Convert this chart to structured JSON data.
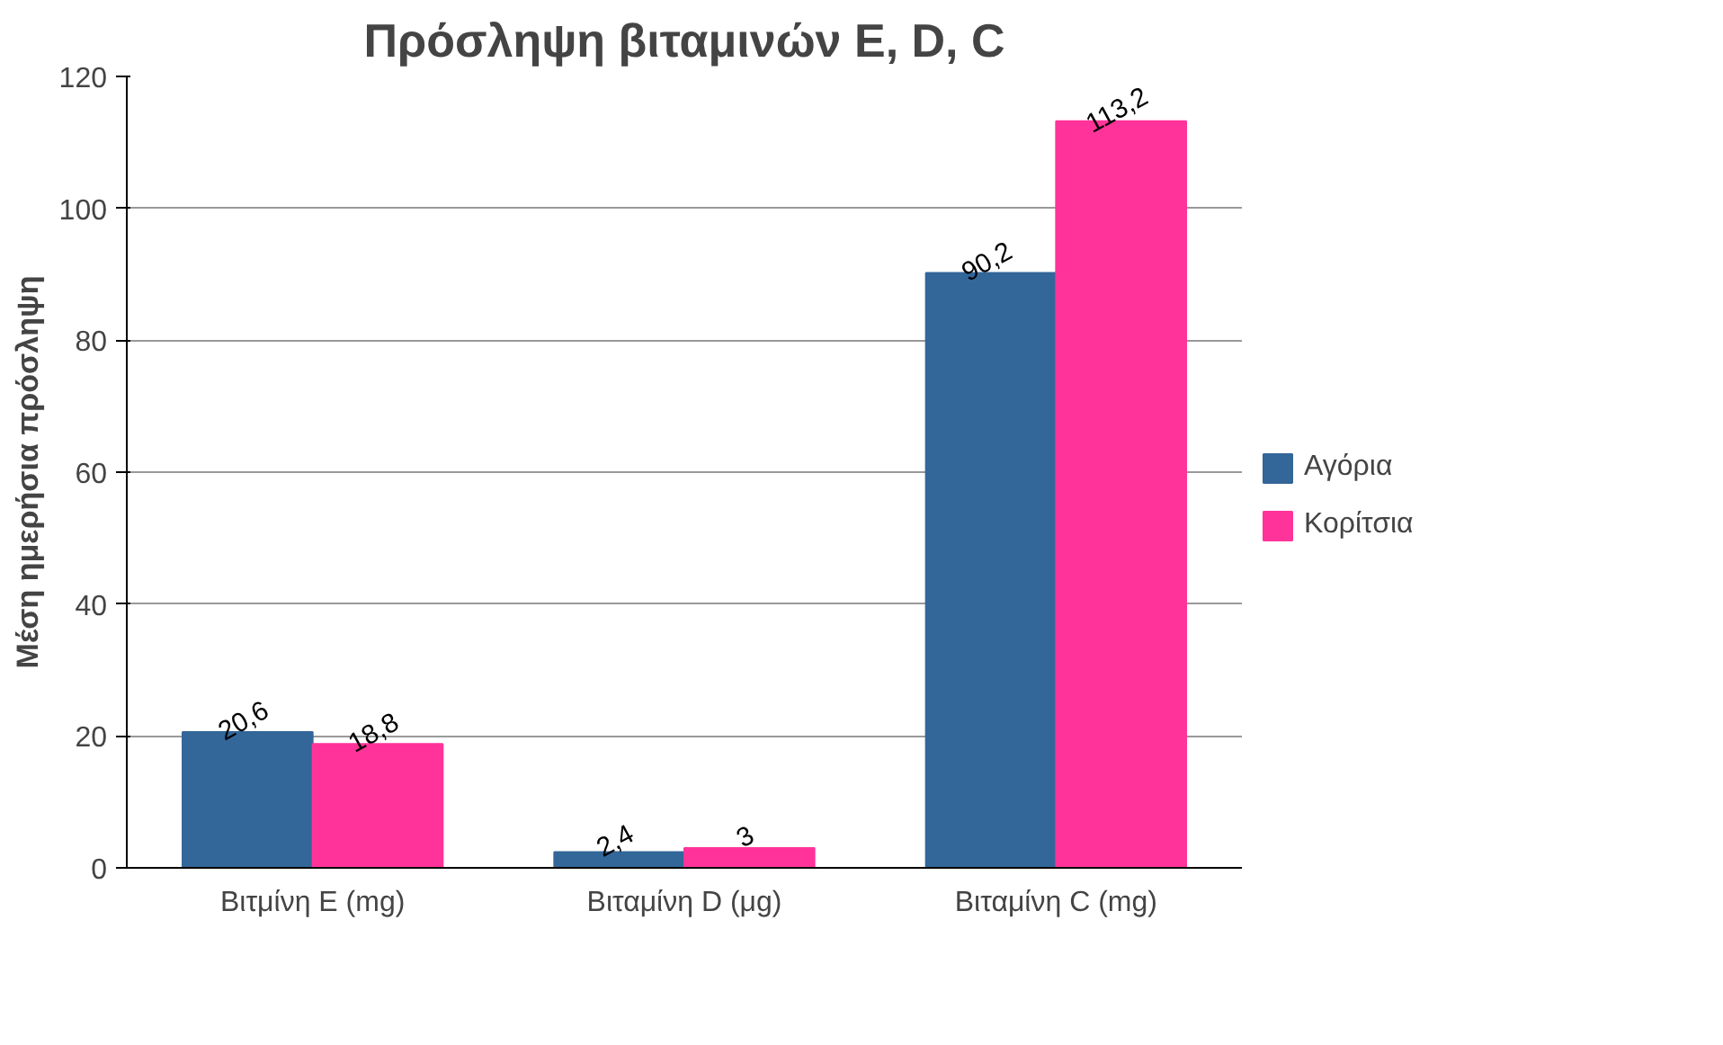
{
  "chart_data": {
    "type": "bar",
    "title": "Πρόσληψη βιταμινών E, D, C",
    "ylabel": "Μέση ημερήσια πρόσληψη",
    "categories": [
      "Βιτμίνη E (mg)",
      "Βιταμίνη D (μg)",
      "Βιταμίνη C (mg)"
    ],
    "series": [
      {
        "name": "Αγόρια",
        "color": "#336699",
        "values": [
          20.6,
          2.4,
          90.2
        ],
        "value_labels": [
          "20,6",
          "2,4",
          "90,2"
        ]
      },
      {
        "name": "Κορίτσια",
        "color": "#ff3399",
        "values": [
          18.8,
          3,
          113.2
        ],
        "value_labels": [
          "18,8",
          "3",
          "113,2"
        ]
      }
    ],
    "ylim": [
      0,
      120
    ],
    "yticks": [
      0,
      20,
      40,
      60,
      80,
      100,
      120
    ],
    "grid": "y",
    "legend": "right"
  }
}
